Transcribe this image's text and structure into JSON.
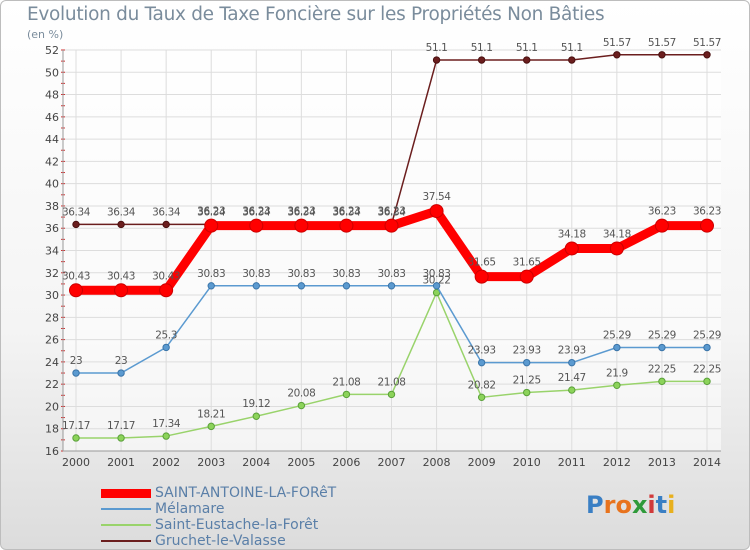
{
  "chart_data": {
    "type": "line",
    "title": "Evolution du Taux de Taxe Foncière sur les Propriétés Non Bâties",
    "ylabel": "(en %)",
    "xlabel": "",
    "ylim": [
      16,
      52
    ],
    "yticks": [
      16,
      18,
      20,
      22,
      24,
      26,
      28,
      30,
      32,
      34,
      36,
      38,
      40,
      42,
      44,
      46,
      48,
      50,
      52
    ],
    "categories": [
      "2000",
      "2001",
      "2002",
      "2003",
      "2004",
      "2005",
      "2006",
      "2007",
      "2008",
      "2009",
      "2010",
      "2011",
      "2012",
      "2013",
      "2014"
    ],
    "series": [
      {
        "name": "Gruchet-le-Valasse",
        "color": "#6b1e1e",
        "values": [
          36.34,
          36.34,
          36.34,
          36.34,
          36.34,
          36.34,
          36.34,
          36.34,
          51.1,
          51.1,
          51.1,
          51.1,
          51.57,
          51.57,
          51.57
        ],
        "labels": [
          "36.34",
          "36.34",
          "36.34",
          "36.34",
          "36.34",
          "36.34",
          "36.34",
          "36.34",
          "51.1",
          "51.1",
          "51.1",
          "51.1",
          "51.57",
          "51.57",
          "51.57"
        ]
      },
      {
        "name": "Saint-Eustache-la-Forêt",
        "color": "#99d36b",
        "values": [
          17.17,
          17.17,
          17.34,
          18.21,
          19.12,
          20.08,
          21.08,
          21.08,
          30.22,
          20.82,
          21.25,
          21.47,
          21.9,
          22.25,
          22.25
        ],
        "labels": [
          "17.17",
          "17.17",
          "17.34",
          "18.21",
          "19.12",
          "20.08",
          "21.08",
          "21.08",
          "30.22",
          "20.82",
          "21.25",
          "21.47",
          "21.9",
          "22.25",
          "22.25"
        ]
      },
      {
        "name": "Mélamare",
        "color": "#5b9ad0",
        "values": [
          23,
          23,
          25.3,
          30.83,
          30.83,
          30.83,
          30.83,
          30.83,
          30.83,
          23.93,
          23.93,
          23.93,
          25.29,
          25.29,
          25.29
        ],
        "labels": [
          "23",
          "23",
          "25.3",
          "30.83",
          "30.83",
          "30.83",
          "30.83",
          "30.83",
          "30.83",
          "23.93",
          "23.93",
          "23.93",
          "25.29",
          "25.29",
          "25.29"
        ]
      },
      {
        "name": "SAINT-ANTOINE-LA-FORêT",
        "color": "#ee0000",
        "values": [
          30.43,
          30.43,
          30.43,
          36.23,
          36.23,
          36.23,
          36.23,
          36.23,
          37.54,
          31.65,
          31.65,
          34.18,
          34.18,
          36.23,
          36.23
        ],
        "labels": [
          "30.43",
          "30.43",
          "30.43",
          "36.23",
          "36.23",
          "36.23",
          "36.23",
          "36.23",
          "37.54",
          "31.65",
          "31.65",
          "34.18",
          "34.18",
          "36.23",
          "36.23"
        ]
      }
    ],
    "legend_order": [
      "SAINT-ANTOINE-LA-FORêT",
      "Mélamare",
      "Saint-Eustache-la-Forêt",
      "Gruchet-le-Valasse"
    ]
  },
  "logo": {
    "letters": [
      "P",
      "r",
      "o",
      "x",
      "i",
      "t",
      "i"
    ],
    "colors": [
      "#3a7fc4",
      "#e8731d",
      "#e8731d",
      "#2f9a3a",
      "#d13a3a",
      "#3a7fc4",
      "#e8b01d"
    ]
  }
}
